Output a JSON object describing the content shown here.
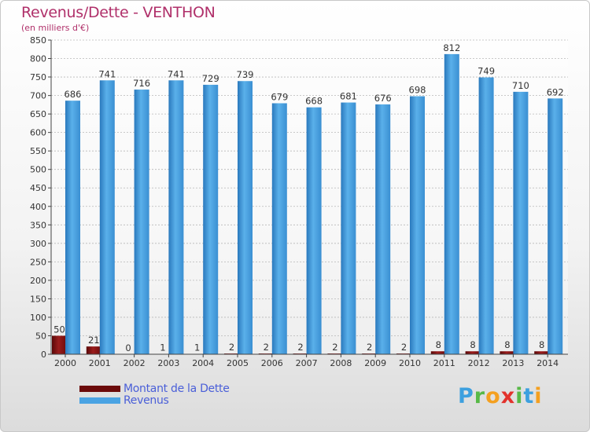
{
  "header": {
    "title": "Revenus/Dette - VENTHON",
    "subtitle": "(en milliers d'€)"
  },
  "legend": {
    "items": [
      {
        "label": "Montant de la Dette",
        "color": "#6b0a0a"
      },
      {
        "label": "Revenus",
        "color": "#4aa3e3"
      }
    ]
  },
  "logo": {
    "text": "Proxiti"
  },
  "chart_data": {
    "type": "bar",
    "categories": [
      "2000",
      "2001",
      "2002",
      "2003",
      "2004",
      "2005",
      "2006",
      "2007",
      "2008",
      "2009",
      "2010",
      "2011",
      "2012",
      "2013",
      "2014"
    ],
    "series": [
      {
        "name": "Montant de la Dette",
        "color": "#7a0f0f",
        "values": [
          50,
          21,
          0,
          1,
          1,
          2,
          2,
          2,
          2,
          2,
          2,
          8,
          8,
          8,
          8
        ]
      },
      {
        "name": "Revenus",
        "color": "#4aa3e3",
        "values": [
          686,
          741,
          716,
          741,
          729,
          739,
          679,
          668,
          681,
          676,
          698,
          812,
          749,
          710,
          692
        ]
      }
    ],
    "ylim": [
      0,
      850
    ],
    "yticks": [
      0,
      50,
      100,
      150,
      200,
      250,
      300,
      350,
      400,
      450,
      500,
      550,
      600,
      650,
      700,
      750,
      800,
      850
    ],
    "grid": true
  }
}
